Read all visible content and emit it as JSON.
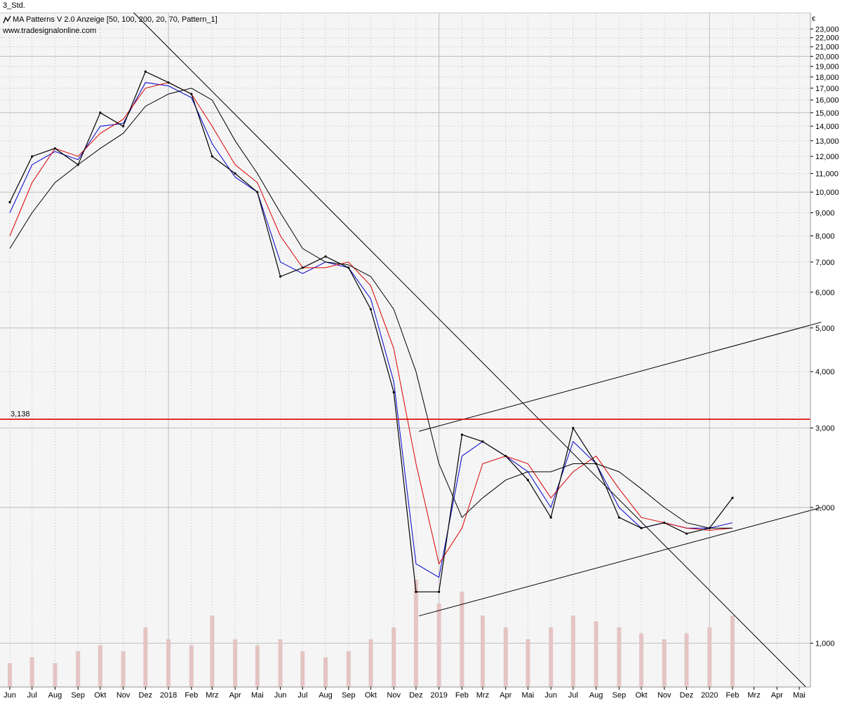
{
  "window": {
    "title": "3_Std."
  },
  "indicator": {
    "legend": "MA Patterns V 2.0 Anzeige  [50, 100, 200, 20, 70, Pattern_1]",
    "icon": "indicator-settings-icon"
  },
  "website": "www.tradesignalonline.com",
  "currency": "€",
  "colors": {
    "price": "#000000",
    "ma_blue": "#0000cc",
    "ma_red": "#dd0000",
    "ma_black": "#000000",
    "resistance": "#dd0000",
    "trendline": "#000000",
    "volume": "#e5c4c4",
    "grid": "#bcbcbc",
    "background": "#f5f5f5"
  },
  "chart_data": {
    "type": "line",
    "y_scale": "log",
    "ylim": [
      0.8,
      25
    ],
    "y_ticks": [
      {
        "value": 1,
        "label": "1,000"
      },
      {
        "value": 2,
        "label": "2,000"
      },
      {
        "value": 3,
        "label": "3,000"
      },
      {
        "value": 4,
        "label": "4,000"
      },
      {
        "value": 5,
        "label": "5,000"
      },
      {
        "value": 6,
        "label": "6,000"
      },
      {
        "value": 7,
        "label": "7,000"
      },
      {
        "value": 8,
        "label": "8,000"
      },
      {
        "value": 9,
        "label": "9,000"
      },
      {
        "value": 10,
        "label": "10,000"
      },
      {
        "value": 11,
        "label": "11,000"
      },
      {
        "value": 12,
        "label": "12,000"
      },
      {
        "value": 13,
        "label": "13,000"
      },
      {
        "value": 14,
        "label": "14,000"
      },
      {
        "value": 15,
        "label": "15,000"
      },
      {
        "value": 16,
        "label": "16,000"
      },
      {
        "value": 17,
        "label": "17,000"
      },
      {
        "value": 18,
        "label": "18,000"
      },
      {
        "value": 19,
        "label": "19,000"
      },
      {
        "value": 20,
        "label": "20,000"
      },
      {
        "value": 21,
        "label": "21,000"
      },
      {
        "value": 22,
        "label": "22,000"
      },
      {
        "value": 23,
        "label": "23,000"
      }
    ],
    "x_ticks": [
      "Jun",
      "Jul",
      "Aug",
      "Sep",
      "Okt",
      "Nov",
      "Dez",
      "2018",
      "Feb",
      "Mrz",
      "Apr",
      "Mai",
      "Jun",
      "Jul",
      "Aug",
      "Sep",
      "Okt",
      "Nov",
      "Dez",
      "2019",
      "Feb",
      "Mrz",
      "Apr",
      "Mai",
      "Jun",
      "Jul",
      "Aug",
      "Sep",
      "Okt",
      "Nov",
      "Dez",
      "2020",
      "Feb",
      "Mrz",
      "Apr",
      "Mai"
    ],
    "x_start": "2017-06",
    "x_end": "2020-05",
    "price": {
      "dates": [
        "2017-06",
        "2017-07",
        "2017-08",
        "2017-09",
        "2017-10",
        "2017-11",
        "2017-12",
        "2018-01",
        "2018-02",
        "2018-03",
        "2018-04",
        "2018-05",
        "2018-06",
        "2018-07",
        "2018-08",
        "2018-09",
        "2018-10",
        "2018-11",
        "2018-12",
        "2019-01",
        "2019-02",
        "2019-03",
        "2019-04",
        "2019-05",
        "2019-06",
        "2019-07",
        "2019-08",
        "2019-09",
        "2019-10",
        "2019-11",
        "2019-12",
        "2020-01",
        "2020-02"
      ],
      "values": [
        9.5,
        12.0,
        12.5,
        11.5,
        15.0,
        14.0,
        18.5,
        17.5,
        16.5,
        12.0,
        11.0,
        10.0,
        6.5,
        6.8,
        7.2,
        6.8,
        5.5,
        3.6,
        1.3,
        1.3,
        2.9,
        2.8,
        2.6,
        2.3,
        1.9,
        3.0,
        2.5,
        1.9,
        1.8,
        1.85,
        1.75,
        1.8,
        2.1
      ]
    },
    "series": [
      {
        "values": [
          9.0,
          11.5,
          12.3,
          11.8,
          14.0,
          14.2,
          17.5,
          17.2,
          16.2,
          12.8,
          10.8,
          10.0,
          7.0,
          6.6,
          7.0,
          6.8,
          5.8,
          3.8,
          1.5,
          1.4,
          2.6,
          2.8,
          2.6,
          2.4,
          2.0,
          2.8,
          2.5,
          2.0,
          1.8,
          1.85,
          1.8,
          1.8,
          1.85
        ]
      },
      {
        "values": [
          8.0,
          10.5,
          12.5,
          12.0,
          13.5,
          14.5,
          17.0,
          17.5,
          16.5,
          14.0,
          11.5,
          10.5,
          8.0,
          6.8,
          6.8,
          7.0,
          6.2,
          4.5,
          2.5,
          1.5,
          1.8,
          2.5,
          2.6,
          2.5,
          2.1,
          2.4,
          2.6,
          2.2,
          1.9,
          1.85,
          1.8,
          1.78,
          1.8
        ]
      },
      {
        "values": [
          7.5,
          9.0,
          10.5,
          11.5,
          12.5,
          13.5,
          15.5,
          16.5,
          17.0,
          16.0,
          13.0,
          11.0,
          9.0,
          7.5,
          7.0,
          6.9,
          6.5,
          5.5,
          4.0,
          2.5,
          1.9,
          2.1,
          2.3,
          2.4,
          2.4,
          2.5,
          2.5,
          2.4,
          2.2,
          2.0,
          1.85,
          1.8,
          1.8
        ]
      }
    ],
    "volume": {
      "dates": [
        "2017-06",
        "2017-07",
        "2017-08",
        "2017-09",
        "2017-10",
        "2017-11",
        "2017-12",
        "2018-01",
        "2018-02",
        "2018-03",
        "2018-04",
        "2018-05",
        "2018-06",
        "2018-07",
        "2018-08",
        "2018-09",
        "2018-10",
        "2018-11",
        "2018-12",
        "2019-01",
        "2019-02",
        "2019-03",
        "2019-04",
        "2019-05",
        "2019-06",
        "2019-07",
        "2019-08",
        "2019-09",
        "2019-10",
        "2019-11",
        "2019-12",
        "2020-01",
        "2020-02"
      ],
      "values": [
        0.2,
        0.25,
        0.2,
        0.3,
        0.35,
        0.3,
        0.5,
        0.4,
        0.35,
        0.6,
        0.4,
        0.35,
        0.4,
        0.3,
        0.25,
        0.3,
        0.4,
        0.5,
        0.9,
        0.7,
        0.8,
        0.6,
        0.5,
        0.4,
        0.5,
        0.6,
        0.55,
        0.5,
        0.45,
        0.4,
        0.45,
        0.5,
        0.6
      ]
    },
    "resistance": {
      "value": 3.138,
      "label": "3,138"
    },
    "trendlines": [
      {
        "name": "downtrend",
        "from": {
          "date": "2017-11-15",
          "value": 25
        },
        "to": {
          "date": "2020-05-10",
          "value": 0.8
        }
      },
      {
        "name": "channel-upper",
        "from": {
          "date": "2018-12-05",
          "value": 2.95
        },
        "to": {
          "date": "2020-05-31",
          "value": 5.15
        }
      },
      {
        "name": "channel-lower",
        "from": {
          "date": "2018-12-05",
          "value": 1.15
        },
        "to": {
          "date": "2020-05-31",
          "value": 2.0
        }
      }
    ]
  }
}
